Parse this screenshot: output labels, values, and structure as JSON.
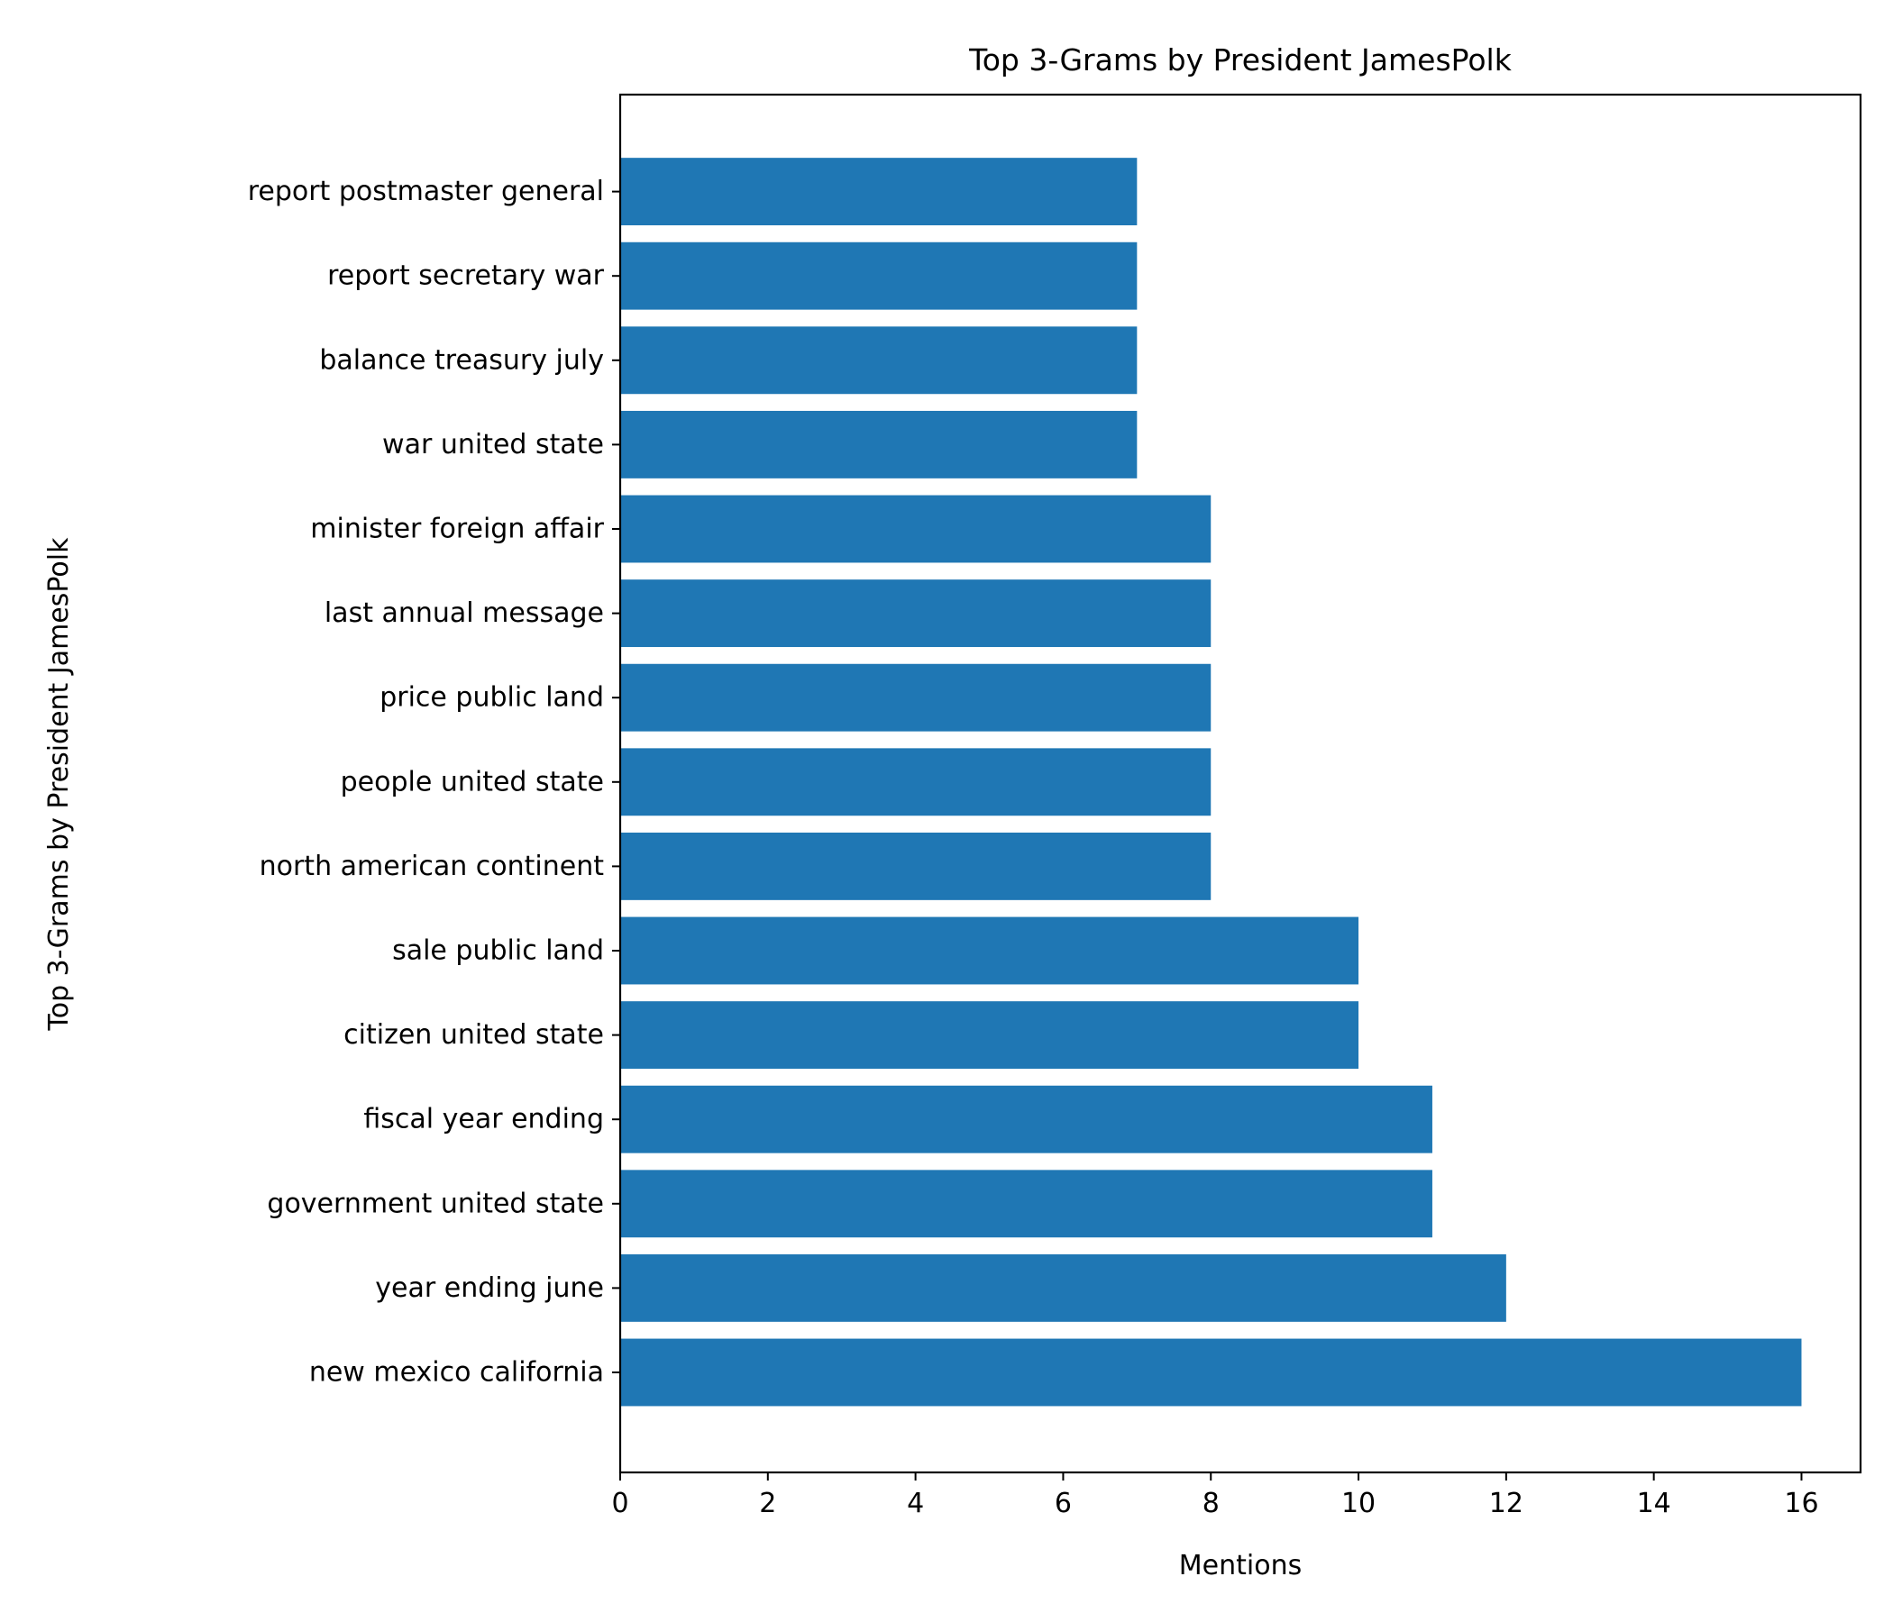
{
  "chart_data": {
    "type": "bar",
    "orientation": "horizontal",
    "title": "Top 3-Grams by President JamesPolk",
    "xlabel": "Mentions",
    "ylabel": "Top 3-Grams by President JamesPolk",
    "xlim": [
      0,
      16.8
    ],
    "xticks": [
      0,
      2,
      4,
      6,
      8,
      10,
      12,
      14,
      16
    ],
    "grid": false,
    "bar_color": "#1f77b4",
    "categories": [
      "new mexico california",
      "year ending june",
      "government united state",
      "fiscal year ending",
      "citizen united state",
      "sale public land",
      "north american continent",
      "people united state",
      "price public land",
      "last annual message",
      "minister foreign affair",
      "war united state",
      "balance treasury july",
      "report secretary war",
      "report postmaster general"
    ],
    "values": [
      16,
      12,
      11,
      11,
      10,
      10,
      8,
      8,
      8,
      8,
      8,
      7,
      7,
      7,
      7
    ]
  }
}
